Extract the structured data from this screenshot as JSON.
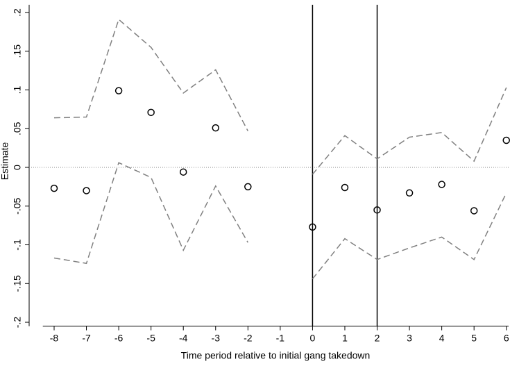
{
  "chart_data": {
    "type": "scatter",
    "x_label": "Time period relative to initial gang takedown",
    "y_label": "Estimate",
    "x": [
      -8,
      -7,
      -6,
      -5,
      -4,
      -3,
      -2,
      -1,
      0,
      1,
      2,
      3,
      4,
      5,
      6
    ],
    "values": [
      -0.027,
      -0.03,
      0.099,
      0.071,
      -0.006,
      0.051,
      -0.025,
      null,
      -0.077,
      -0.026,
      -0.055,
      -0.033,
      -0.022,
      -0.056,
      0.035
    ],
    "ci_upper": [
      0.064,
      0.065,
      0.191,
      0.155,
      0.096,
      0.126,
      0.047,
      null,
      -0.009,
      0.041,
      0.011,
      0.039,
      0.045,
      0.008,
      0.103
    ],
    "ci_lower": [
      -0.117,
      -0.124,
      0.006,
      -0.013,
      -0.107,
      -0.024,
      -0.097,
      null,
      -0.144,
      -0.092,
      -0.119,
      -0.104,
      -0.09,
      -0.119,
      -0.033
    ],
    "marker_color": "#000000",
    "ci_color": "#808080",
    "xlim": [
      -8.35,
      6.07
    ],
    "ylim": [
      -0.205,
      0.21
    ],
    "xticks": [
      -8,
      -7,
      -6,
      -5,
      -4,
      -3,
      -2,
      -1,
      0,
      1,
      2,
      3,
      4,
      5,
      6
    ],
    "yticks": [
      {
        "value": 0.2,
        "label": ".2"
      },
      {
        "value": 0.15,
        "label": ".15"
      },
      {
        "value": 0.1,
        "label": ".1"
      },
      {
        "value": 0.05,
        "label": ".05"
      },
      0,
      {
        "value": -0.05,
        "label": "-.05"
      },
      {
        "value": -0.1,
        "label": "-.1"
      },
      {
        "value": -0.15,
        "label": "-.15"
      },
      {
        "value": -0.2,
        "label": "-.2"
      }
    ],
    "reference_hline": 0,
    "reference_vlines": [
      0,
      2
    ]
  }
}
